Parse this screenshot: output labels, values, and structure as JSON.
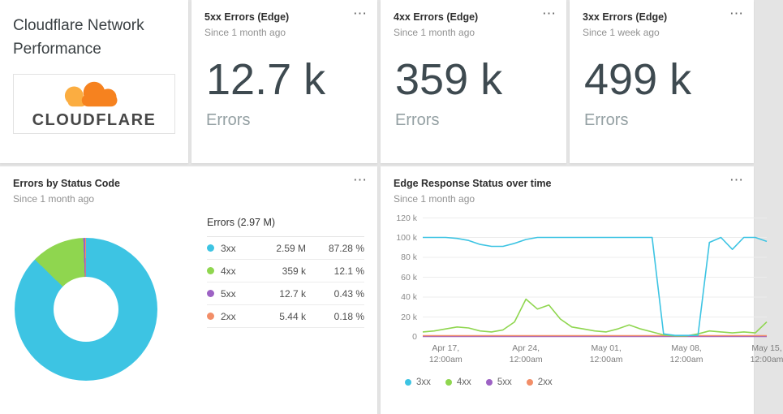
{
  "icons": {
    "more": "⋯"
  },
  "title_card": {
    "title": "Cloudflare Network Performance",
    "logo_text": "CLOUDFLARE"
  },
  "stat_cards": [
    {
      "title": "5xx Errors (Edge)",
      "subtitle": "Since 1 month ago",
      "value": "12.7 k",
      "label": "Errors"
    },
    {
      "title": "4xx Errors (Edge)",
      "subtitle": "Since 1 month ago",
      "value": "359 k",
      "label": "Errors"
    },
    {
      "title": "3xx Errors (Edge)",
      "subtitle": "Since 1 week ago",
      "value": "499 k",
      "label": "Errors"
    }
  ],
  "donut_card": {
    "title": "Errors by Status Code",
    "subtitle": "Since 1 month ago",
    "legend_title": "Errors (2.97 M)",
    "rows": [
      {
        "name": "3xx",
        "value": "2.59 M",
        "pct": "87.28 %",
        "color": "#3dc4e3"
      },
      {
        "name": "4xx",
        "value": "359 k",
        "pct": "12.1 %",
        "color": "#8fd64f"
      },
      {
        "name": "5xx",
        "value": "12.7 k",
        "pct": "0.43 %",
        "color": "#9d62c4"
      },
      {
        "name": "2xx",
        "value": "5.44 k",
        "pct": "0.18 %",
        "color": "#f28e68"
      }
    ]
  },
  "line_card": {
    "title": "Edge Response Status over time",
    "subtitle": "Since 1 month ago",
    "legend": [
      {
        "label": "3xx",
        "color": "#3dc4e3"
      },
      {
        "label": "4xx",
        "color": "#8fd64f"
      },
      {
        "label": "5xx",
        "color": "#9d62c4"
      },
      {
        "label": "2xx",
        "color": "#f28e68"
      }
    ]
  },
  "chart_data": [
    {
      "type": "pie",
      "donut": true,
      "title": "Errors by Status Code",
      "total_label": "Errors (2.97 M)",
      "labels": [
        "3xx",
        "4xx",
        "5xx",
        "2xx"
      ],
      "values": [
        2590000,
        359000,
        12700,
        5440
      ],
      "value_labels": [
        "2.59 M",
        "359 k",
        "12.7 k",
        "5.44 k"
      ],
      "percentages": [
        87.28,
        12.1,
        0.43,
        0.18
      ],
      "colors": [
        "#3dc4e3",
        "#8fd64f",
        "#9d62c4",
        "#f28e68"
      ],
      "legend_position": "right"
    },
    {
      "type": "line",
      "title": "Edge Response Status over time",
      "xlabel": "",
      "ylabel": "",
      "ylim": [
        0,
        120000
      ],
      "grid": true,
      "legend_position": "bottom",
      "x_count": 31,
      "yticks": [
        {
          "value": 0,
          "label": "0"
        },
        {
          "value": 20000,
          "label": "20 k"
        },
        {
          "value": 40000,
          "label": "40 k"
        },
        {
          "value": 60000,
          "label": "60 k"
        },
        {
          "value": 80000,
          "label": "80 k"
        },
        {
          "value": 100000,
          "label": "100 k"
        },
        {
          "value": 120000,
          "label": "120 k"
        }
      ],
      "xticks": [
        {
          "index": 2,
          "line1": "Apr 17,",
          "line2": "12:00am"
        },
        {
          "index": 9,
          "line1": "Apr 24,",
          "line2": "12:00am"
        },
        {
          "index": 16,
          "line1": "May 01,",
          "line2": "12:00am"
        },
        {
          "index": 23,
          "line1": "May 08,",
          "line2": "12:00am"
        },
        {
          "index": 30,
          "line1": "May 15,",
          "line2": "12:00am"
        }
      ],
      "series": [
        {
          "name": "3xx",
          "color": "#3dc4e3",
          "values": [
            100000,
            100000,
            100000,
            99000,
            97000,
            93000,
            91000,
            91000,
            94000,
            98000,
            100000,
            100000,
            100000,
            100000,
            100000,
            100000,
            100000,
            100000,
            100000,
            100000,
            100000,
            3000,
            1500,
            1500,
            1500,
            95000,
            100000,
            88000,
            100000,
            100000,
            96000
          ]
        },
        {
          "name": "4xx",
          "color": "#8fd64f",
          "values": [
            5000,
            6000,
            8000,
            10000,
            9000,
            6000,
            5000,
            7000,
            15000,
            38000,
            28000,
            32000,
            18000,
            10000,
            8000,
            6000,
            5000,
            8000,
            12000,
            8000,
            5000,
            2000,
            1000,
            1000,
            3000,
            6000,
            5000,
            4000,
            5000,
            4000,
            15000
          ]
        },
        {
          "name": "5xx",
          "color": "#9d62c4",
          "values": [
            300,
            300,
            300,
            300,
            300,
            300,
            300,
            300,
            300,
            300,
            300,
            300,
            300,
            300,
            300,
            300,
            300,
            300,
            300,
            300,
            300,
            300,
            300,
            300,
            300,
            300,
            300,
            300,
            300,
            300,
            300
          ]
        },
        {
          "name": "2xx",
          "color": "#f28e68",
          "values": [
            1200,
            1200,
            1200,
            1200,
            1200,
            1200,
            1200,
            1200,
            1200,
            1200,
            1200,
            1200,
            1200,
            1200,
            1200,
            1200,
            1200,
            1200,
            1200,
            1200,
            1200,
            1200,
            1200,
            1200,
            1200,
            1200,
            1200,
            1200,
            1200,
            1200,
            1200
          ]
        }
      ]
    }
  ]
}
